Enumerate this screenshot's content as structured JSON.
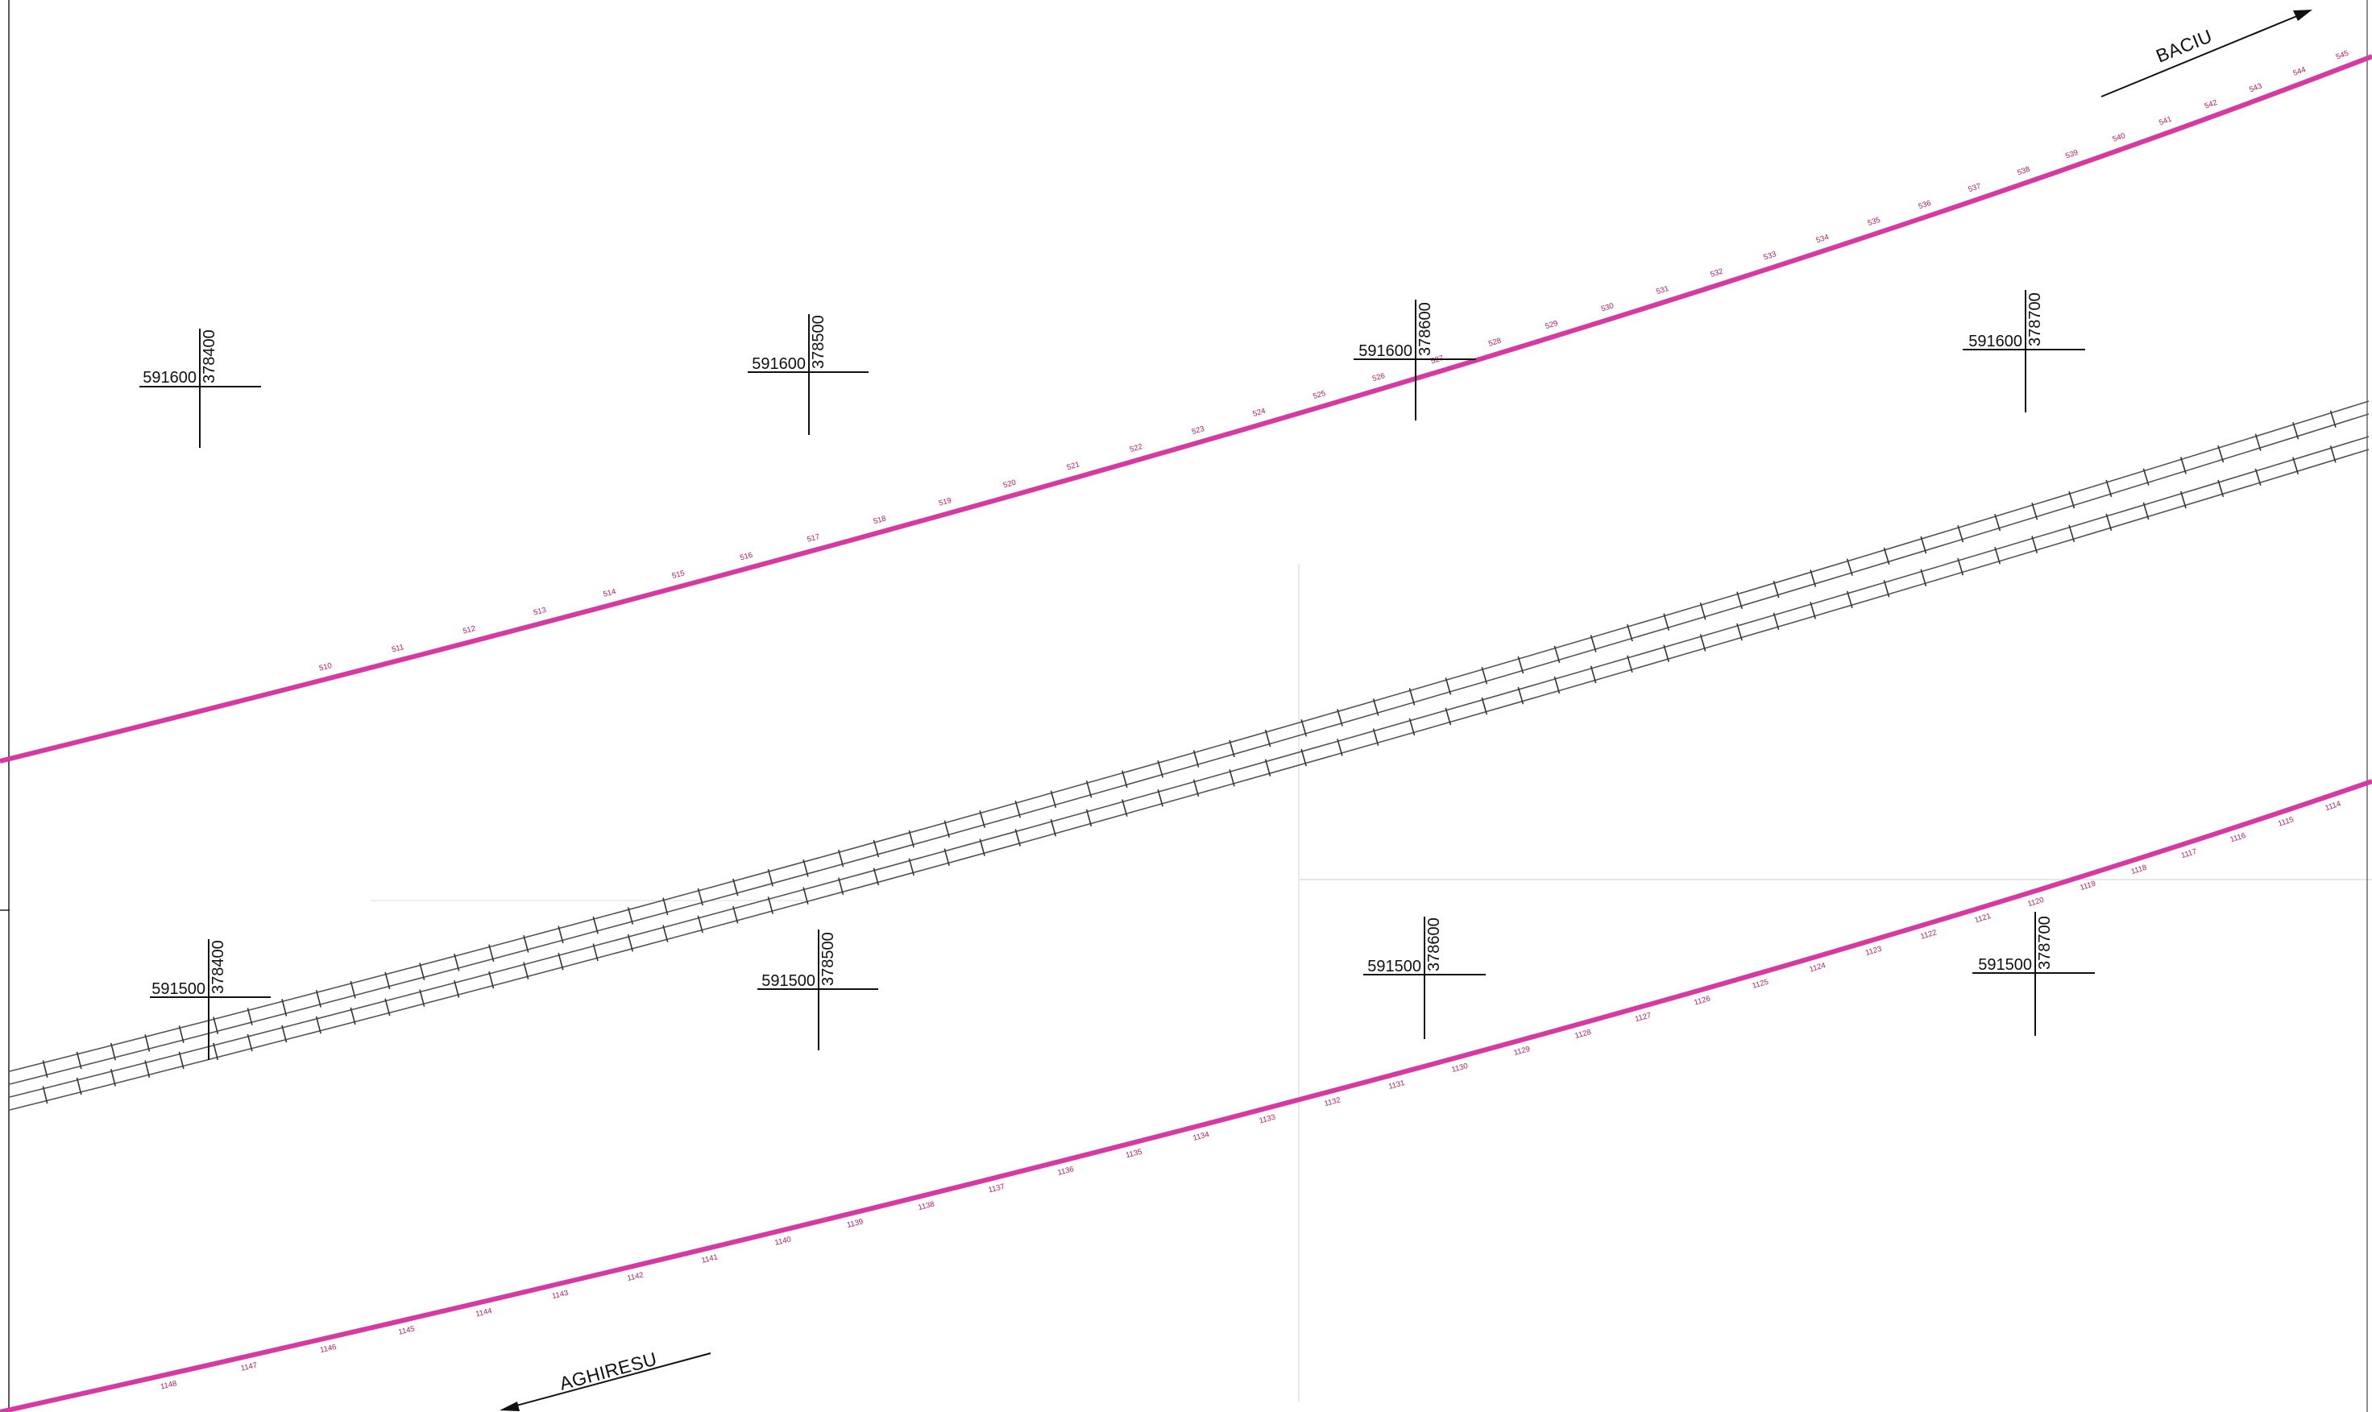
{
  "colors": {
    "boundary": "#d6399f",
    "label": "#c2185b",
    "rail": "#555555",
    "ink": "#111111"
  },
  "directions": {
    "north": "BACIU",
    "south": "AGHIRESU"
  },
  "grid_crosses": [
    {
      "e": "591600",
      "n": "378400"
    },
    {
      "e": "591600",
      "n": "378500"
    },
    {
      "e": "591600",
      "n": "378600"
    },
    {
      "e": "591600",
      "n": "378700"
    },
    {
      "e": "591500",
      "n": "378400"
    },
    {
      "e": "591500",
      "n": "378500"
    },
    {
      "e": "591500",
      "n": "378600"
    },
    {
      "e": "591500",
      "n": "378700"
    }
  ],
  "north_boundary_points": [
    "510",
    "511",
    "512",
    "513",
    "514",
    "515",
    "516",
    "517",
    "518",
    "519",
    "520",
    "521",
    "522",
    "523",
    "524",
    "525",
    "526",
    "527",
    "528",
    "529",
    "530",
    "531",
    "532",
    "533",
    "534",
    "535",
    "536",
    "537",
    "538",
    "539",
    "540",
    "541",
    "542",
    "543",
    "544",
    "545"
  ],
  "south_boundary_points": [
    "1114",
    "1115",
    "1116",
    "1117",
    "1118",
    "1119",
    "1120",
    "1121",
    "1122",
    "1123",
    "1124",
    "1125",
    "1126",
    "1127",
    "1128",
    "1129",
    "1130",
    "1131",
    "1132",
    "1133",
    "1134",
    "1135",
    "1136",
    "1137",
    "1138",
    "1139",
    "1140",
    "1141",
    "1142",
    "1143",
    "1144",
    "1145",
    "1146",
    "1147",
    "1148"
  ]
}
